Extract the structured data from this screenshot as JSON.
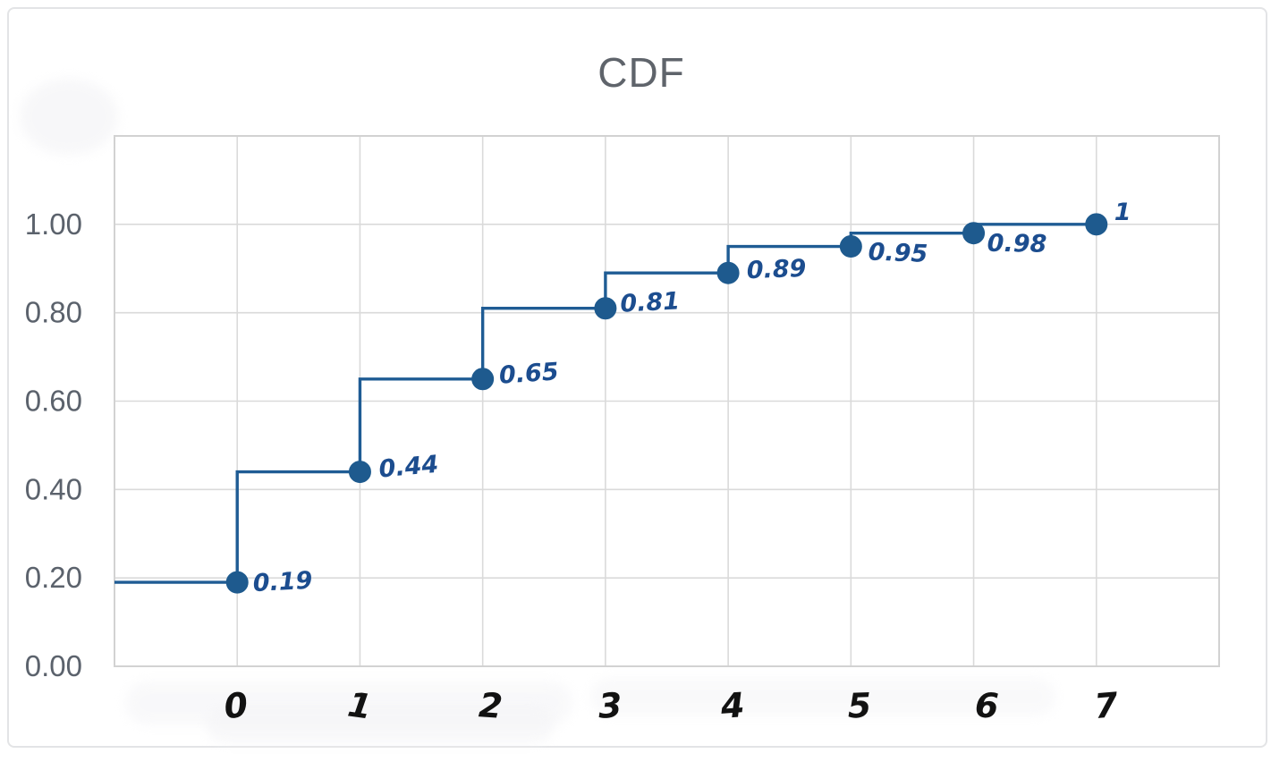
{
  "window": {
    "background_color": "#ffffff",
    "card_border_color": "#e3e4e6"
  },
  "chart_data": {
    "type": "line",
    "subtype": "step-cdf",
    "title": "CDF",
    "xlabel": "",
    "ylabel": "",
    "x": [
      0,
      1,
      2,
      3,
      4,
      5,
      6,
      7
    ],
    "values": [
      0.19,
      0.44,
      0.65,
      0.81,
      0.89,
      0.95,
      0.98,
      1.0
    ],
    "point_labels": [
      "0.19",
      "0.44",
      "0.65",
      "0.81",
      "0.89",
      "0.95",
      "0.98",
      "1"
    ],
    "x_tick_labels": [
      "0",
      "1",
      "2",
      "3",
      "4",
      "5",
      "6",
      "7"
    ],
    "y_ticks": [
      0.0,
      0.2,
      0.4,
      0.6,
      0.8,
      1.0
    ],
    "y_tick_labels": [
      "0.00",
      "0.20",
      "0.40",
      "0.60",
      "0.80",
      "1.00"
    ],
    "xlim": [
      -1,
      8
    ],
    "ylim": [
      0,
      1.2
    ],
    "grid": true,
    "legend": "none",
    "line_starts_at_left_edge": true,
    "markers": true,
    "colors": {
      "line": "#1f5c94",
      "marker": "#1e5a8e",
      "point_label": "#1c4d8f",
      "y_tick_label": "#5b626c",
      "x_tick_label": "#121212",
      "grid": "#dadada",
      "plot_border": "#d2d2d2",
      "title": "#5f646b"
    }
  }
}
